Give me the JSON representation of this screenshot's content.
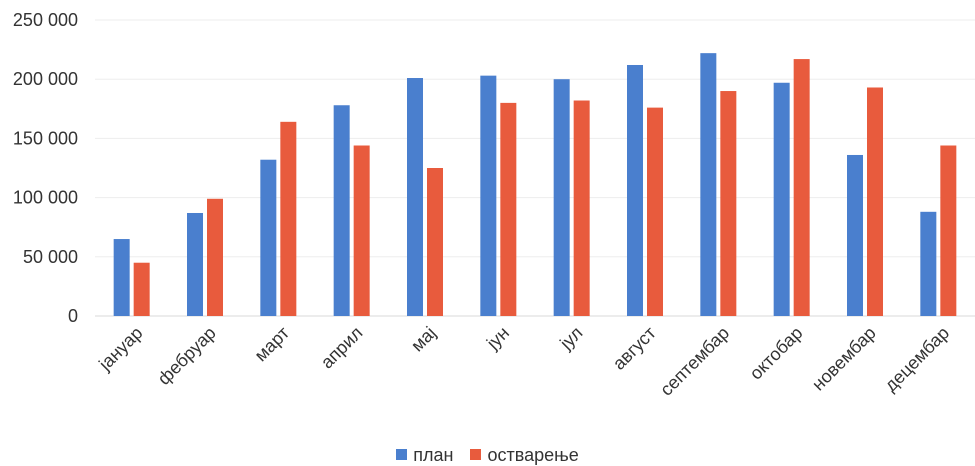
{
  "chart_data": {
    "type": "bar",
    "title": "",
    "xlabel": "",
    "ylabel": "",
    "ylim": [
      0,
      250000
    ],
    "yticks": [
      0,
      50000,
      100000,
      150000,
      200000,
      250000
    ],
    "ytick_labels": [
      "0",
      "50 000",
      "100 000",
      "150 000",
      "200 000",
      "250 000"
    ],
    "grid": true,
    "legend_position": "bottom",
    "categories": [
      "јануар",
      "фебруар",
      "март",
      "април",
      "мај",
      "јун",
      "јул",
      "август",
      "септембар",
      "октобар",
      "новембар",
      "децембар"
    ],
    "series": [
      {
        "name": "план",
        "color": "#4a7fce",
        "values": [
          65000,
          87000,
          132000,
          178000,
          201000,
          203000,
          200000,
          212000,
          222000,
          197000,
          136000,
          88000
        ]
      },
      {
        "name": "остварење",
        "color": "#e85b3d",
        "values": [
          45000,
          99000,
          164000,
          144000,
          125000,
          180000,
          182000,
          176000,
          190000,
          217000,
          193000,
          144000
        ]
      }
    ]
  }
}
